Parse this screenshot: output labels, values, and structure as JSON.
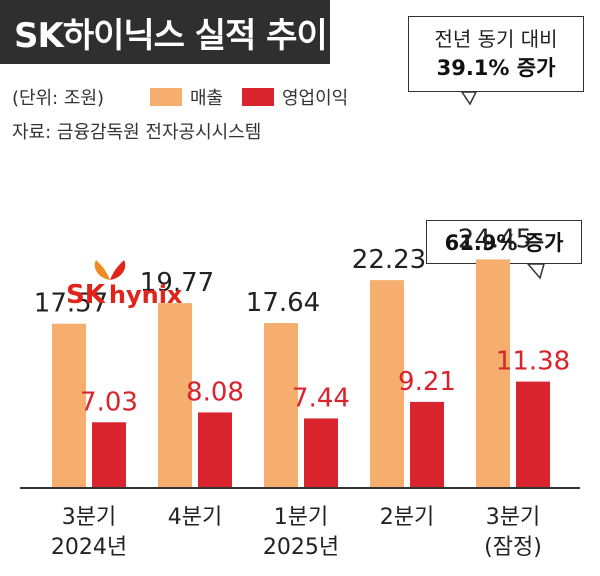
{
  "header": {
    "title": "SK하이닉스 실적 추이"
  },
  "meta": {
    "unit": "(단위: 조원)",
    "source": "자료: 금융감독원 전자공시시스템"
  },
  "legend": {
    "sales_label": "매출",
    "op_label": "영업이익"
  },
  "callouts": {
    "yoy_line1": "전년 동기 대비",
    "yoy_line2": "39.1% 증가",
    "op_growth": "61.9% 증가"
  },
  "logo": {
    "text_sk": "SK",
    "text_hynix": "hynix"
  },
  "colors": {
    "sales": "#f5ae6e",
    "op": "#d9232d",
    "sales_label": "#222222",
    "op_label": "#d9232d"
  },
  "chart_data": {
    "type": "bar",
    "categories": [
      "3분기\n2024년",
      "4분기",
      "1분기\n2025년",
      "2분기",
      "3분기\n(잠정)"
    ],
    "series": [
      {
        "name": "매출",
        "values": [
          17.57,
          19.77,
          17.64,
          22.23,
          24.45
        ]
      },
      {
        "name": "영업이익",
        "values": [
          7.03,
          8.08,
          7.44,
          9.21,
          11.38
        ]
      }
    ],
    "value_labels": {
      "sales": [
        "17.57",
        "19.77",
        "17.64",
        "22.23",
        "24.45"
      ],
      "op": [
        "7.03",
        "8.08",
        "7.44",
        "9.21",
        "11.38"
      ]
    },
    "ylim": [
      0,
      30
    ],
    "grid": false,
    "legend_position": "top"
  }
}
